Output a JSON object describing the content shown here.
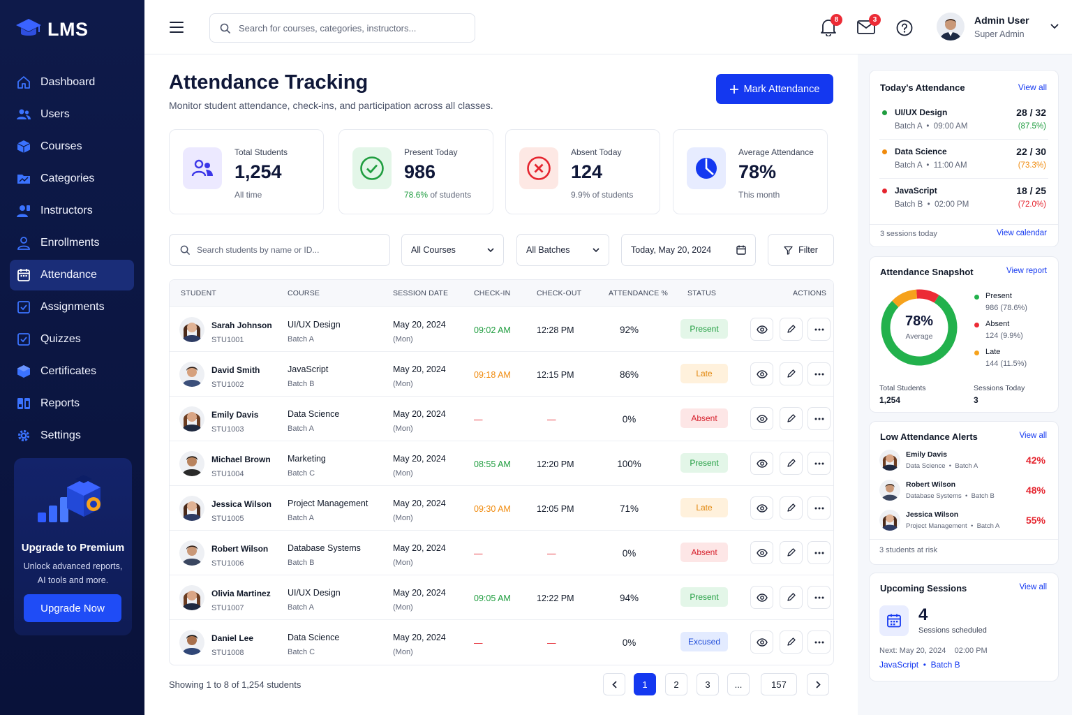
{
  "brand": {
    "name": "LMS"
  },
  "nav": [
    {
      "label": "Dashboard",
      "icon": "home-icon"
    },
    {
      "label": "Users",
      "icon": "users-icon"
    },
    {
      "label": "Courses",
      "icon": "box-icon"
    },
    {
      "label": "Categories",
      "icon": "chart-folder-icon"
    },
    {
      "label": "Instructors",
      "icon": "instructor-icon"
    },
    {
      "label": "Enrollments",
      "icon": "person-icon"
    },
    {
      "label": "Attendance",
      "icon": "calendar-icon",
      "active": true
    },
    {
      "label": "Assignments",
      "icon": "checkbox-icon"
    },
    {
      "label": "Quizzes",
      "icon": "checkbox-icon"
    },
    {
      "label": "Certificates",
      "icon": "cube-icon"
    },
    {
      "label": "Reports",
      "icon": "reports-icon"
    },
    {
      "label": "Settings",
      "icon": "gear-icon"
    }
  ],
  "upgrade": {
    "title": "Upgrade to Premium",
    "line1": "Unlock advanced reports,",
    "line2": "AI tools and more.",
    "button": "Upgrade Now"
  },
  "topbar": {
    "search_placeholder": "Search for courses, categories, instructors...",
    "notifications_count": "8",
    "messages_count": "3",
    "user_name": "Admin User",
    "user_role": "Super Admin"
  },
  "page": {
    "title": "Attendance Tracking",
    "subtitle": "Monitor student attendance, check-ins, and participation across all classes.",
    "mark_button": "Mark Attendance"
  },
  "stats": [
    {
      "label": "Total Students",
      "value": "1,254",
      "sub": "All time",
      "sub_hl": ""
    },
    {
      "label": "Present Today",
      "value": "986",
      "sub": " of students",
      "sub_hl": "78.6%"
    },
    {
      "label": "Absent Today",
      "value": "124",
      "sub": "9.9% of students",
      "sub_hl": ""
    },
    {
      "label": "Average Attendance",
      "value": "78%",
      "sub": "This month",
      "sub_hl": ""
    }
  ],
  "filters": {
    "search_placeholder": "Search students by name or ID...",
    "course": "All Courses",
    "batch": "All Batches",
    "date": "Today, May 20, 2024",
    "filter": "Filter"
  },
  "table": {
    "headers": [
      "STUDENT",
      "COURSE",
      "SESSION DATE",
      "CHECK-IN",
      "CHECK-OUT",
      "ATTENDANCE %",
      "STATUS",
      "ACTIONS"
    ],
    "rows": [
      {
        "name": "Sarah Johnson",
        "id": "STU1001",
        "course": "UI/UX Design",
        "batch": "Batch A",
        "date": "May 20, 2024",
        "day": "(Mon)",
        "checkin": "09:02 AM",
        "checkout": "12:28 PM",
        "pct": "92%",
        "status": "Present",
        "ci_color": "#1f9d3f",
        "av": "f1"
      },
      {
        "name": "David Smith",
        "id": "STU1002",
        "course": "JavaScript",
        "batch": "Batch B",
        "date": "May 20, 2024",
        "day": "(Mon)",
        "checkin": "09:18 AM",
        "checkout": "12:15 PM",
        "pct": "86%",
        "status": "Late",
        "ci_color": "#f08a0c",
        "av": "m1"
      },
      {
        "name": "Emily Davis",
        "id": "STU1003",
        "course": "Data Science",
        "batch": "Batch A",
        "date": "May 20, 2024",
        "day": "(Mon)",
        "checkin": "—",
        "checkout": "—",
        "pct": "0%",
        "status": "Absent",
        "ci_color": "#e5242e",
        "av": "f2"
      },
      {
        "name": "Michael Brown",
        "id": "STU1004",
        "course": "Marketing",
        "batch": "Batch C",
        "date": "May 20, 2024",
        "day": "(Mon)",
        "checkin": "08:55 AM",
        "checkout": "12:20 PM",
        "pct": "100%",
        "status": "Present",
        "ci_color": "#1f9d3f",
        "av": "m2"
      },
      {
        "name": "Jessica Wilson",
        "id": "STU1005",
        "course": "Project Management",
        "batch": "Batch A",
        "date": "May 20, 2024",
        "day": "(Mon)",
        "checkin": "09:30 AM",
        "checkout": "12:05 PM",
        "pct": "71%",
        "status": "Late",
        "ci_color": "#f08a0c",
        "av": "f1"
      },
      {
        "name": "Robert Wilson",
        "id": "STU1006",
        "course": "Database Systems",
        "batch": "Batch B",
        "date": "May 20, 2024",
        "day": "(Mon)",
        "checkin": "—",
        "checkout": "—",
        "pct": "0%",
        "status": "Absent",
        "ci_color": "#e5242e",
        "av": "m3"
      },
      {
        "name": "Olivia Martinez",
        "id": "STU1007",
        "course": "UI/UX Design",
        "batch": "Batch A",
        "date": "May 20, 2024",
        "day": "(Mon)",
        "checkin": "09:05 AM",
        "checkout": "12:22 PM",
        "pct": "94%",
        "status": "Present",
        "ci_color": "#1f9d3f",
        "av": "f2"
      },
      {
        "name": "Daniel Lee",
        "id": "STU1008",
        "course": "Data Science",
        "batch": "Batch C",
        "date": "May 20, 2024",
        "day": "(Mon)",
        "checkin": "—",
        "checkout": "—",
        "pct": "0%",
        "status": "Excused",
        "ci_color": "#e5242e",
        "av": "m4"
      }
    ]
  },
  "pagination": {
    "showing": "Showing 1 to 8 of 1,254 students",
    "pages": [
      "1",
      "2",
      "3",
      "...",
      "157"
    ],
    "current": "1"
  },
  "today": {
    "title": "Today's Attendance",
    "link": "View all",
    "sessions": [
      {
        "course": "UI/UX Design",
        "meta": "Batch A  •  09:00 AM",
        "count": "28 / 32",
        "pct": "(87.5%)",
        "color": "#1f9d3f"
      },
      {
        "course": "Data Science",
        "meta": "Batch A  •  11:00 AM",
        "count": "22 / 30",
        "pct": "(73.3%)",
        "color": "#f08a0c"
      },
      {
        "course": "JavaScript",
        "meta": "Batch B  •  02:00 PM",
        "count": "18 / 25",
        "pct": "(72.0%)",
        "color": "#e5242e"
      }
    ],
    "footer": "3 sessions today",
    "footer_link": "View calendar"
  },
  "snapshot": {
    "title": "Attendance Snapshot",
    "link": "View report",
    "center_value": "78%",
    "center_label": "Average",
    "legend": [
      {
        "label": "Present",
        "value": "986 (78.6%)",
        "color": "#22b14c",
        "share": 78.6
      },
      {
        "label": "Absent",
        "value": "124 (9.9%)",
        "color": "#ec2b35",
        "share": 9.9
      },
      {
        "label": "Late",
        "value": "144 (11.5%)",
        "color": "#f6a21c",
        "share": 11.5
      }
    ],
    "total_label": "Total Students",
    "total_value": "1,254",
    "sessions_label": "Sessions Today",
    "sessions_value": "3"
  },
  "alerts": {
    "title": "Low Attendance Alerts",
    "link": "View all",
    "items": [
      {
        "name": "Emily Davis",
        "course": "Data Science",
        "batch": "Batch A",
        "pct": "42%",
        "av": "f2"
      },
      {
        "name": "Robert Wilson",
        "course": "Database Systems",
        "batch": "Batch B",
        "pct": "48%",
        "av": "m3"
      },
      {
        "name": "Jessica Wilson",
        "course": "Project Management",
        "batch": "Batch A",
        "pct": "55%",
        "av": "f1"
      }
    ],
    "footer": "3 students at risk"
  },
  "upcoming": {
    "title": "Upcoming Sessions",
    "link": "View all",
    "count": "4",
    "count_label": "Sessions scheduled",
    "next": "Next: May 20, 2024",
    "time": "02:00 PM",
    "course": "JavaScript",
    "batch": "Batch B"
  },
  "colors": {
    "accent": "#1438f0",
    "sidebar": "#0e1a4a",
    "present": "#22b14c",
    "absent": "#ec2b35",
    "late": "#f6a21c"
  }
}
